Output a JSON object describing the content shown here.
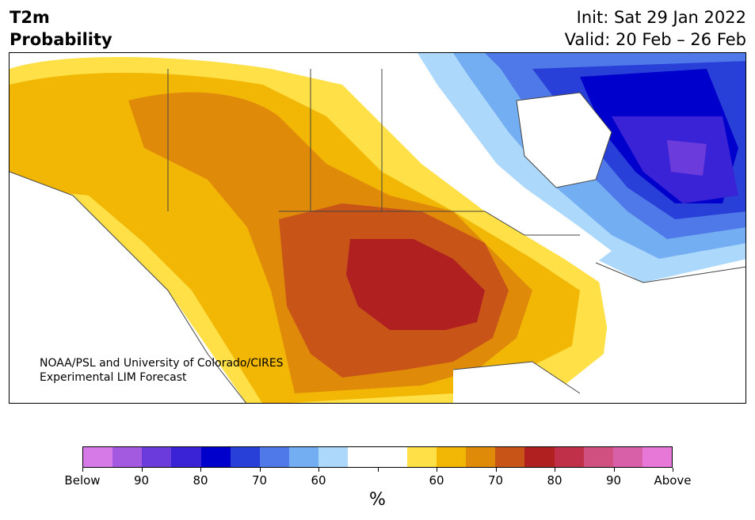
{
  "header": {
    "title_line1": "T2m",
    "title_line2": "Probability",
    "init": "Init: Sat 29 Jan 2022",
    "valid": "Valid: 20 Feb – 26 Feb"
  },
  "map": {
    "credit_line1": "NOAA/PSL and University of Colorado/CIRES",
    "credit_line2": "Experimental LIM Forecast"
  },
  "colorbar": {
    "colors": [
      "#d67ae8",
      "#a35ae0",
      "#6c3bdb",
      "#3a22d6",
      "#0000cc",
      "#2840d8",
      "#4f78e8",
      "#74aef2",
      "#acd9fb",
      "#ffffff",
      "#ffffff",
      "#ffe047",
      "#f2b705",
      "#e08a0a",
      "#c85418",
      "#b02020",
      "#c03048",
      "#d05080",
      "#d860a8",
      "#e878d8"
    ],
    "tick_labels": [
      "Below",
      "90",
      "80",
      "70",
      "60",
      "",
      "60",
      "70",
      "80",
      "90",
      "Above"
    ],
    "unit": "%"
  }
}
